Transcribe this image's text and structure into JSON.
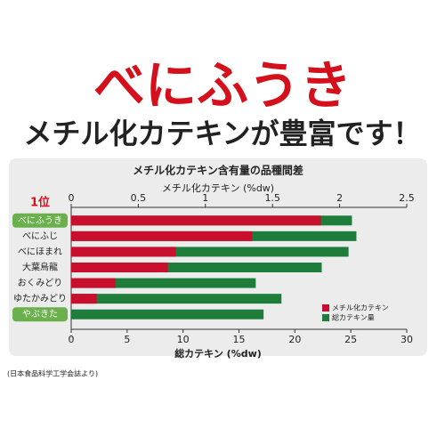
{
  "header": {
    "title": "べにふうき",
    "subtitle": "メチル化カテキンが豊富です！"
  },
  "chart_data": {
    "type": "bar",
    "orientation": "horizontal",
    "title": "メチル化カテキン含有量の品種間差",
    "rank_label": "1位",
    "x2_label": "メチル化カテキン (%dw)",
    "x_label": "総カテキン (%dw)",
    "categories": [
      "べにふうき",
      "べにふじ",
      "べにほまれ",
      "大葉烏龍",
      "おくみどり",
      "ゆたかみどり",
      "やぶきた"
    ],
    "highlight_categories": [
      0,
      6
    ],
    "series": [
      {
        "name": "メチル化カテキン",
        "color": "#c8102e",
        "axis": "x2",
        "values": [
          1.86,
          1.35,
          0.78,
          0.72,
          0.33,
          0.19,
          0
        ]
      },
      {
        "name": "総カテキン量",
        "color": "#1e7d3a",
        "values": [
          25.1,
          25.5,
          24.8,
          22.4,
          16.5,
          18.8,
          17.2
        ]
      }
    ],
    "xlim": [
      0,
      30
    ],
    "xticks": [
      0,
      5,
      10,
      15,
      20,
      25,
      30
    ],
    "x2lim": [
      0,
      2.5
    ],
    "x2ticks": [
      0,
      0.5,
      1,
      1.5,
      2,
      2.5
    ]
  },
  "footnote": "(日本食品科学工学会誌より)"
}
